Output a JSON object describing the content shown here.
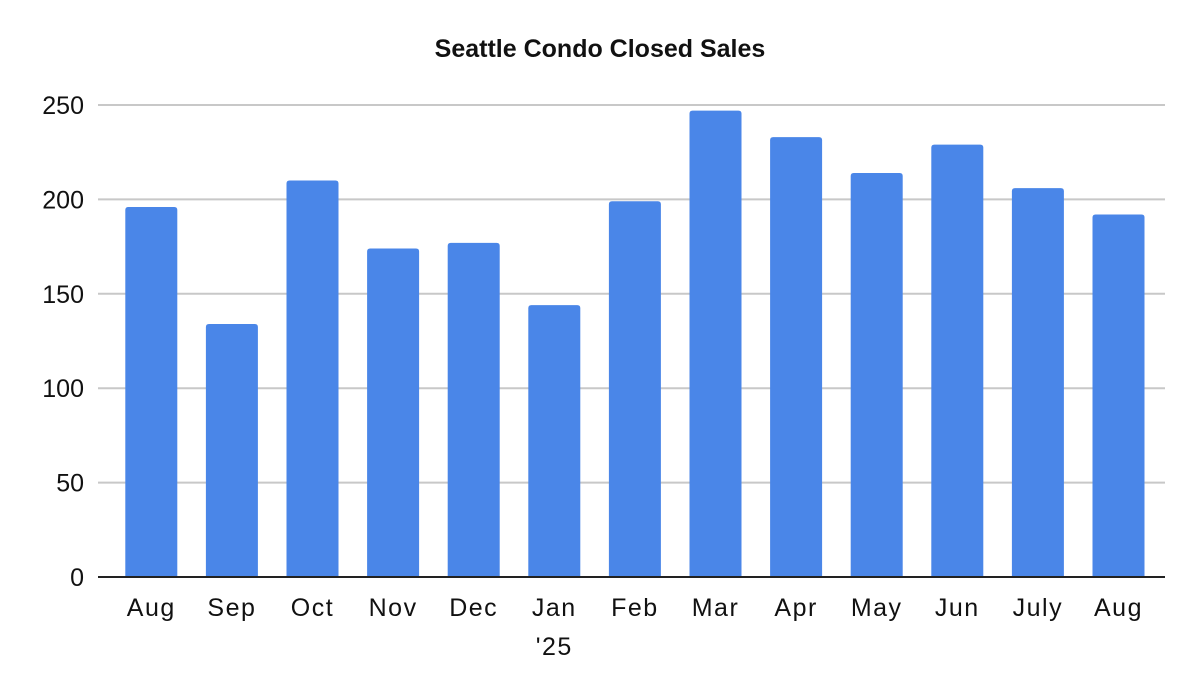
{
  "chart_data": {
    "type": "bar",
    "title": "Seattle Condo Closed Sales",
    "xlabel": "",
    "ylabel": "",
    "categories": [
      "Aug",
      "Sep",
      "Oct",
      "Nov",
      "Dec",
      "Jan\n'25",
      "Feb",
      "Mar",
      "Apr",
      "May",
      "Jun",
      "July",
      "Aug"
    ],
    "values": [
      196,
      134,
      210,
      174,
      177,
      144,
      199,
      247,
      233,
      214,
      229,
      206,
      192
    ],
    "ylim": [
      0,
      250
    ],
    "yticks": [
      0,
      50,
      100,
      150,
      200,
      250
    ],
    "grid": true,
    "legend": "none",
    "bar_color": "#4a86e8",
    "grid_color": "#c8c8c8",
    "axis_color": "#222222"
  }
}
